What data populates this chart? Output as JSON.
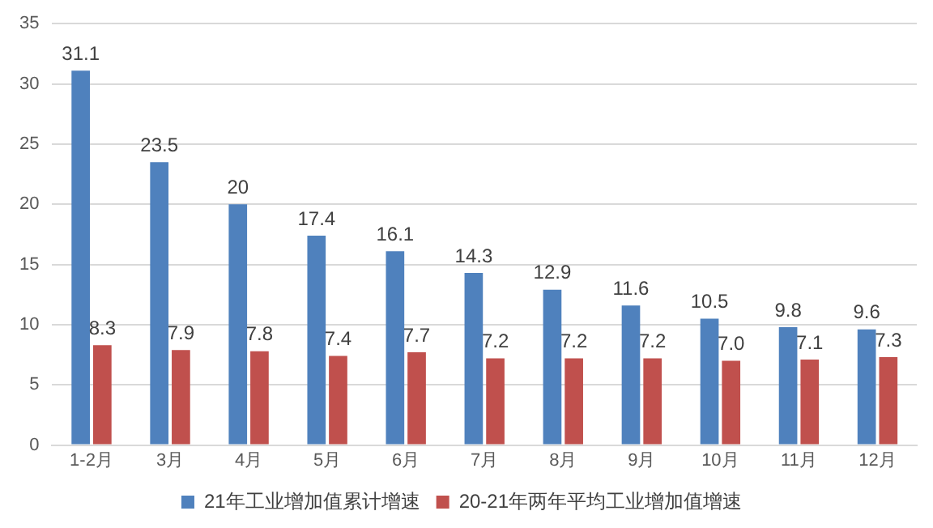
{
  "chart_data": {
    "type": "bar",
    "categories": [
      "1-2月",
      "3月",
      "4月",
      "5月",
      "6月",
      "7月",
      "8月",
      "9月",
      "10月",
      "11月",
      "12月"
    ],
    "series": [
      {
        "name": "21年工业增加值累计增速",
        "color": "#4f81bd",
        "values": [
          31.1,
          23.5,
          20,
          17.4,
          16.1,
          14.3,
          12.9,
          11.6,
          10.5,
          9.8,
          9.6
        ],
        "value_labels": [
          "31.1",
          "23.5",
          "20",
          "17.4",
          "16.1",
          "14.3",
          "12.9",
          "11.6",
          "10.5",
          "9.8",
          "9.6"
        ]
      },
      {
        "name": "20-21年两年平均工业增加值增速",
        "color": "#c0504d",
        "values": [
          8.3,
          7.9,
          7.8,
          7.4,
          7.7,
          7.2,
          7.2,
          7.2,
          7.0,
          7.1,
          7.3
        ],
        "value_labels": [
          "8.3",
          "7.9",
          "7.8",
          "7.4",
          "7.7",
          "7.2",
          "7.2",
          "7.2",
          "7.0",
          "7.1",
          "7.3"
        ]
      }
    ],
    "ylim": [
      0,
      35
    ],
    "yticks": [
      0,
      5,
      10,
      15,
      20,
      25,
      30,
      35
    ],
    "grid": "y",
    "legend": "bottom"
  }
}
